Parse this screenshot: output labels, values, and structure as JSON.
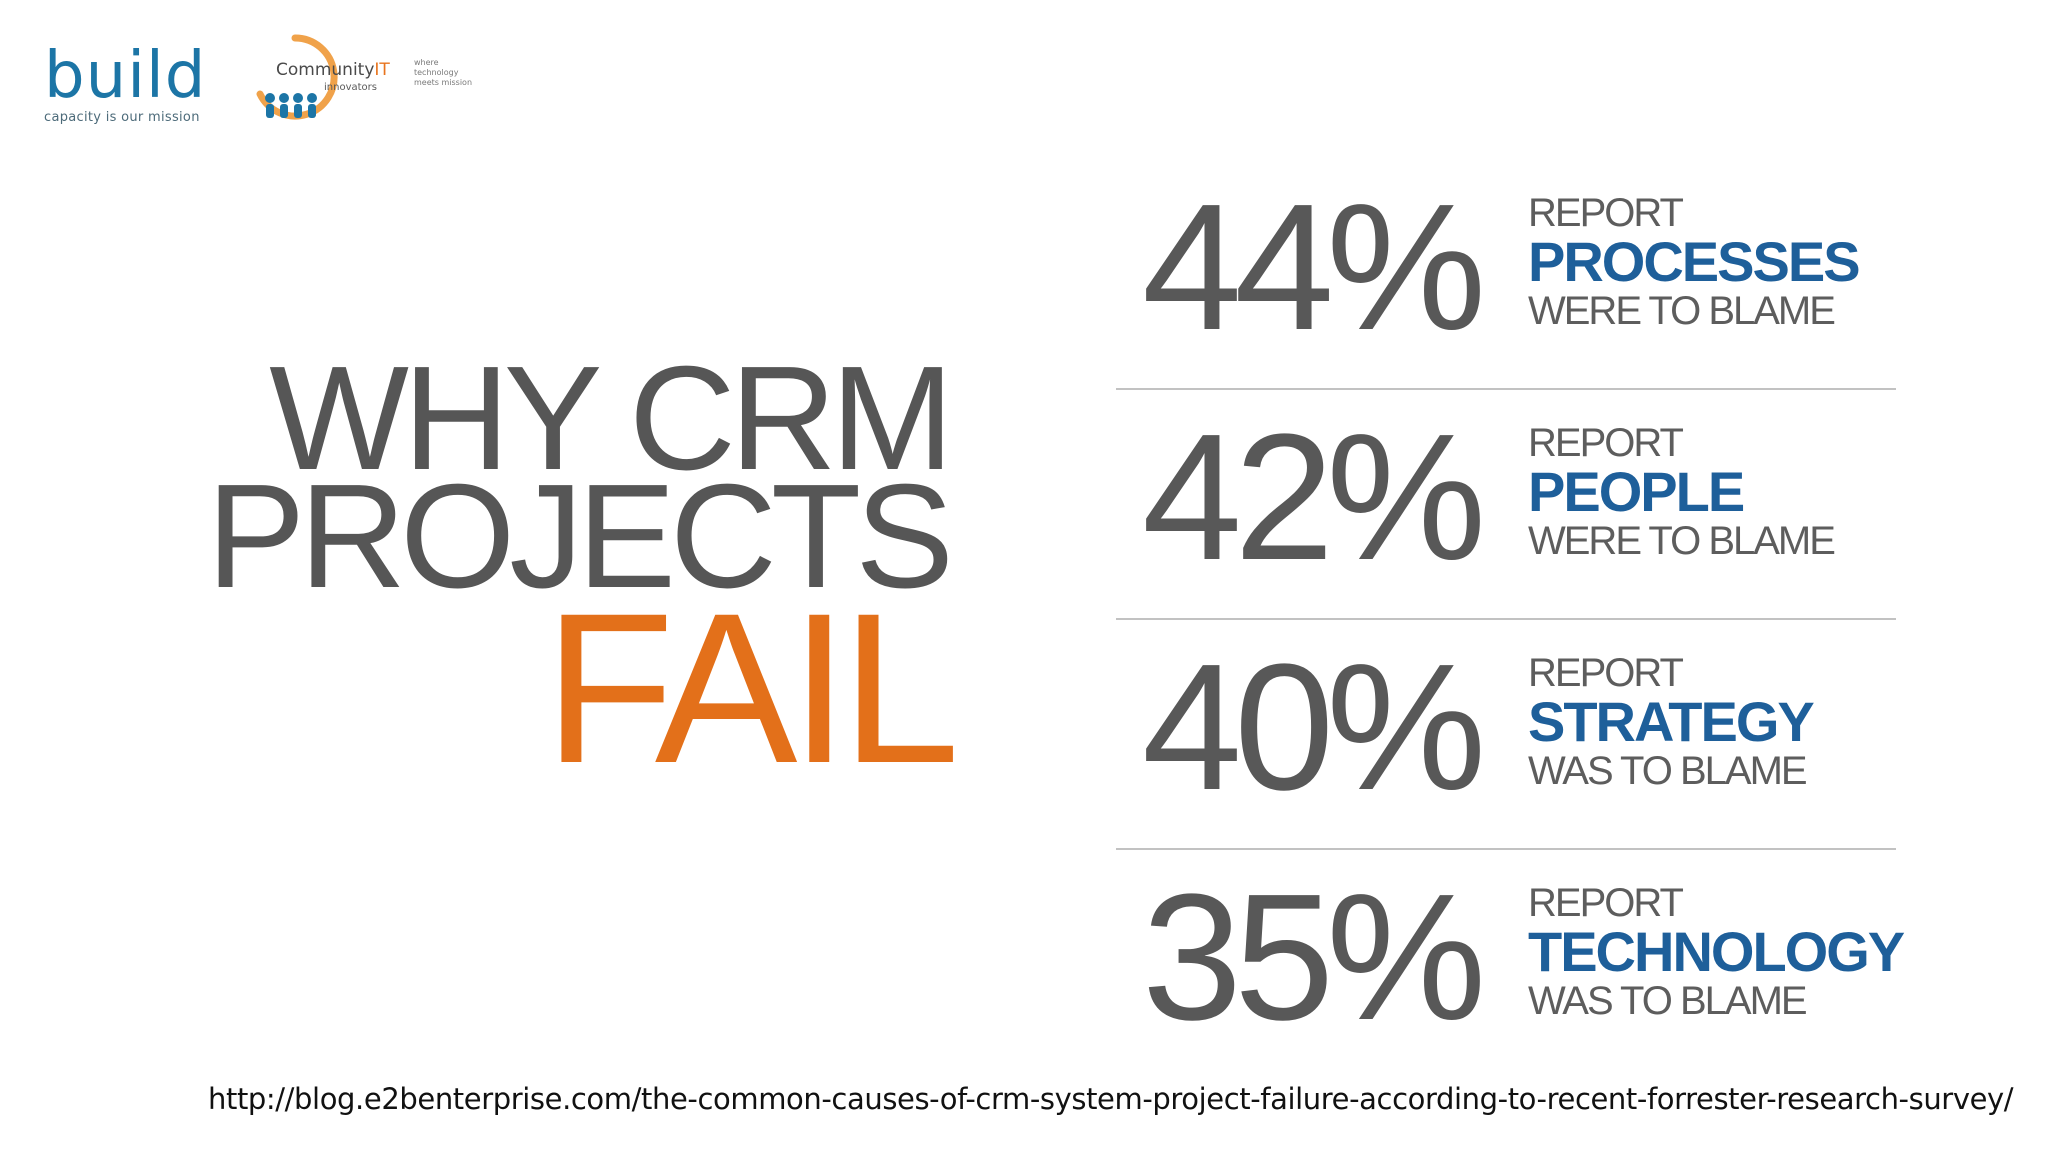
{
  "logos": {
    "build": {
      "name": "build",
      "tagline": "capacity is our mission"
    },
    "community_it": {
      "name_main": "Community",
      "name_accent": "IT",
      "sub": "innovators",
      "tagline": "where technology meets mission"
    }
  },
  "headline": {
    "line1": "WHY CRM",
    "line2": "PROJECTS",
    "line3": "FAIL"
  },
  "stats": [
    {
      "percent": "44%",
      "top": "REPORT",
      "keyword": "PROCESSES",
      "bottom": "WERE TO BLAME"
    },
    {
      "percent": "42%",
      "top": "REPORT",
      "keyword": "PEOPLE",
      "bottom": "WERE TO BLAME"
    },
    {
      "percent": "40%",
      "top": "REPORT",
      "keyword": "STRATEGY",
      "bottom": "WAS TO BLAME"
    },
    {
      "percent": "35%",
      "top": "REPORT",
      "keyword": "TECHNOLOGY",
      "bottom": "WAS TO BLAME"
    }
  ],
  "source": {
    "url": "http://blog.e2benterprise.com/the-common-causes-of-crm-system-project-failure-according-to-recent-forrester-research-survey/"
  },
  "colors": {
    "accent_orange": "#e3701a",
    "keyword_blue": "#1e5f9a",
    "text_gray": "#565656",
    "build_blue": "#1c75a6"
  }
}
